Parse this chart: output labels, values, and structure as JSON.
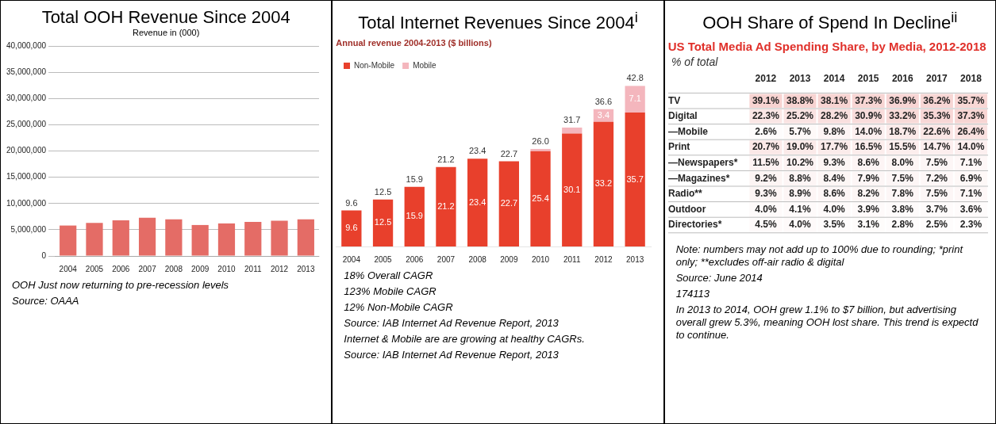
{
  "chart_data": [
    {
      "type": "bar",
      "title": "Total OOH Revenue Since 2004",
      "subtitle": "Revenue in (000)",
      "categories": [
        "2004",
        "2005",
        "2006",
        "2007",
        "2008",
        "2009",
        "2010",
        "2011",
        "2012",
        "2013"
      ],
      "values": [
        5800000,
        6300000,
        6800000,
        7300000,
        7000000,
        5900000,
        6200000,
        6500000,
        6700000,
        7000000
      ],
      "color": "#e46c66",
      "ylim": [
        0,
        40000000
      ],
      "yticks": [
        {
          "value": 0,
          "label": "0"
        },
        {
          "value": 5000000,
          "label": "5,000,000"
        },
        {
          "value": 10000000,
          "label": "10,000,000"
        },
        {
          "value": 15000000,
          "label": "15,000,000"
        },
        {
          "value": 20000000,
          "label": "20,000,000"
        },
        {
          "value": 25000000,
          "label": "25,000,000"
        },
        {
          "value": 30000000,
          "label": "30,000,000"
        },
        {
          "value": 35000000,
          "label": "35,000,000"
        },
        {
          "value": 40000000,
          "label": "40,000,000"
        }
      ],
      "grid": "y",
      "legend": false,
      "annotations": [
        "OOH Just now returning to pre-recession levels",
        "Source: OAAA"
      ]
    },
    {
      "type": "bar",
      "title": "Total Internet Revenues Since 2004$^{i}$",
      "subtitle": "Annual revenue 2004-2013 ($ billions)",
      "categories": [
        "2004",
        "2005",
        "2006",
        "2007",
        "2008",
        "2009",
        "2010",
        "2011",
        "2012",
        "2013"
      ],
      "stacked": true,
      "legend": "top left",
      "series": [
        {
          "name": "Non-Mobile",
          "color": "#e8402c",
          "values": [
            9.6,
            12.5,
            15.9,
            21.2,
            23.4,
            22.7,
            25.4,
            30.1,
            33.2,
            35.7
          ],
          "value_labels": [
            "9.6",
            "12.5",
            "15.9",
            "21.2",
            "23.4",
            "22.7",
            "25.4",
            "30.1",
            "33.2",
            "35.7"
          ]
        },
        {
          "name": "Mobile",
          "color": "#f4b6bd",
          "values": [
            null,
            null,
            null,
            null,
            null,
            null,
            0.6,
            1.6,
            3.4,
            7.1
          ],
          "value_labels": [
            null,
            null,
            null,
            null,
            null,
            null,
            null,
            null,
            "3.4",
            "7.1"
          ]
        }
      ],
      "totals": [
        "9.6",
        "12.5",
        "15.9",
        "21.2",
        "23.4",
        "22.7",
        "26.0",
        "31.7",
        "36.6",
        "42.8"
      ],
      "annotations": [
        "18% Overall CAGR",
        "123% Mobile CAGR",
        "12% Non-Mobile CAGR",
        "Source: IAB Internet Ad Revenue Report, 2013",
        "Internet & Mobile are are growing at healthy CAGRs.",
        "Source: IAB Internet Ad Revenue Report, 2013"
      ]
    },
    {
      "type": "heatmap",
      "title": "OOH Share of Spend In Decline$^{ii}$",
      "subtitle": "US Total Media Ad Spending Share, by Media, 2012-2018",
      "ylabel": "% of total",
      "categories": [
        "2012",
        "2013",
        "2014",
        "2015",
        "2016",
        "2017",
        "2018"
      ],
      "y_categories": [
        "TV",
        "Digital",
        "—Mobile",
        "Print",
        "—Newspapers*",
        "—Magazines*",
        "Radio**",
        "Outdoor",
        "Directories*"
      ],
      "cells": [
        [
          39.1,
          38.8,
          38.1,
          37.3,
          36.9,
          36.2,
          35.7
        ],
        [
          22.3,
          25.2,
          28.2,
          30.9,
          33.2,
          35.3,
          37.3
        ],
        [
          2.6,
          5.7,
          9.8,
          14.0,
          18.7,
          22.6,
          26.4
        ],
        [
          20.7,
          19.0,
          17.7,
          16.5,
          15.5,
          14.7,
          14.0
        ],
        [
          11.5,
          10.2,
          9.3,
          8.6,
          8.0,
          7.5,
          7.1
        ],
        [
          9.2,
          8.8,
          8.4,
          7.9,
          7.5,
          7.2,
          6.9
        ],
        [
          9.3,
          8.9,
          8.6,
          8.2,
          7.8,
          7.5,
          7.1
        ],
        [
          4.0,
          4.1,
          4.0,
          3.9,
          3.8,
          3.7,
          3.6
        ],
        [
          4.5,
          4.0,
          3.5,
          3.1,
          2.8,
          2.5,
          2.3
        ]
      ],
      "cell_labels": [
        [
          "39.1%",
          "38.8%",
          "38.1%",
          "37.3%",
          "36.9%",
          "36.2%",
          "35.7%"
        ],
        [
          "22.3%",
          "25.2%",
          "28.2%",
          "30.9%",
          "33.2%",
          "35.3%",
          "37.3%"
        ],
        [
          "2.6%",
          "5.7%",
          "9.8%",
          "14.0%",
          "18.7%",
          "22.6%",
          "26.4%"
        ],
        [
          "20.7%",
          "19.0%",
          "17.7%",
          "16.5%",
          "15.5%",
          "14.7%",
          "14.0%"
        ],
        [
          "11.5%",
          "10.2%",
          "9.3%",
          "8.6%",
          "8.0%",
          "7.5%",
          "7.1%"
        ],
        [
          "9.2%",
          "8.8%",
          "8.4%",
          "7.9%",
          "7.5%",
          "7.2%",
          "6.9%"
        ],
        [
          "9.3%",
          "8.9%",
          "8.6%",
          "8.2%",
          "7.8%",
          "7.5%",
          "7.1%"
        ],
        [
          "4.0%",
          "4.1%",
          "4.0%",
          "3.9%",
          "3.8%",
          "3.7%",
          "3.6%"
        ],
        [
          "4.5%",
          "4.0%",
          "3.5%",
          "3.1%",
          "2.8%",
          "2.5%",
          "2.3%"
        ]
      ],
      "annotations": [
        "Note: numbers may not add up to 100% due to rounding; *print only; **excludes off-air radio & digital",
        "Source: June 2014",
        "174113",
        "In 2013 to 2014, OOH grew 1.1% to $7 billion, but advertising overall grew 5.3%, meaning OOH lost share. This trend is expectd to continue."
      ]
    }
  ]
}
